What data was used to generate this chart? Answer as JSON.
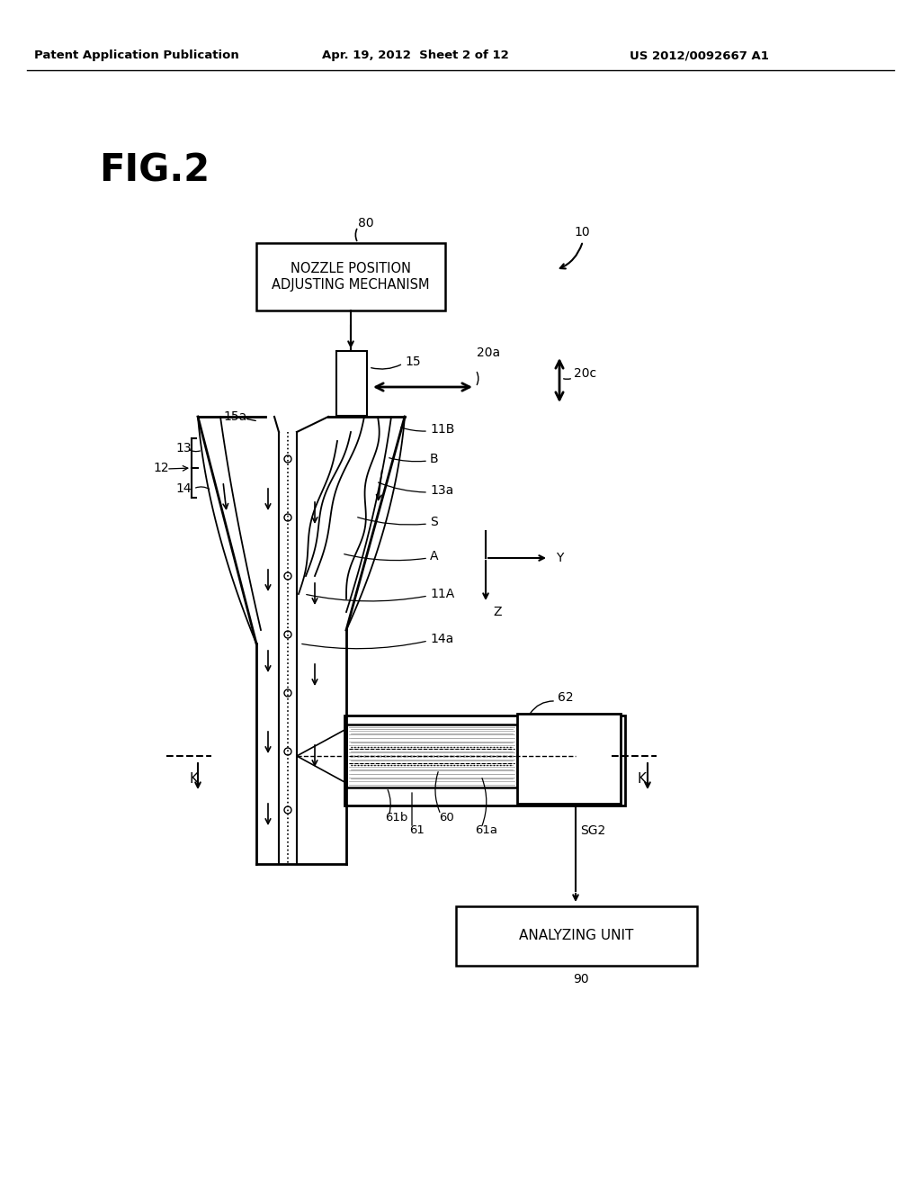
{
  "bg_color": "#ffffff",
  "header_left": "Patent Application Publication",
  "header_mid": "Apr. 19, 2012  Sheet 2 of 12",
  "header_right": "US 2012/0092667 A1",
  "fig_label": "FIG.2"
}
